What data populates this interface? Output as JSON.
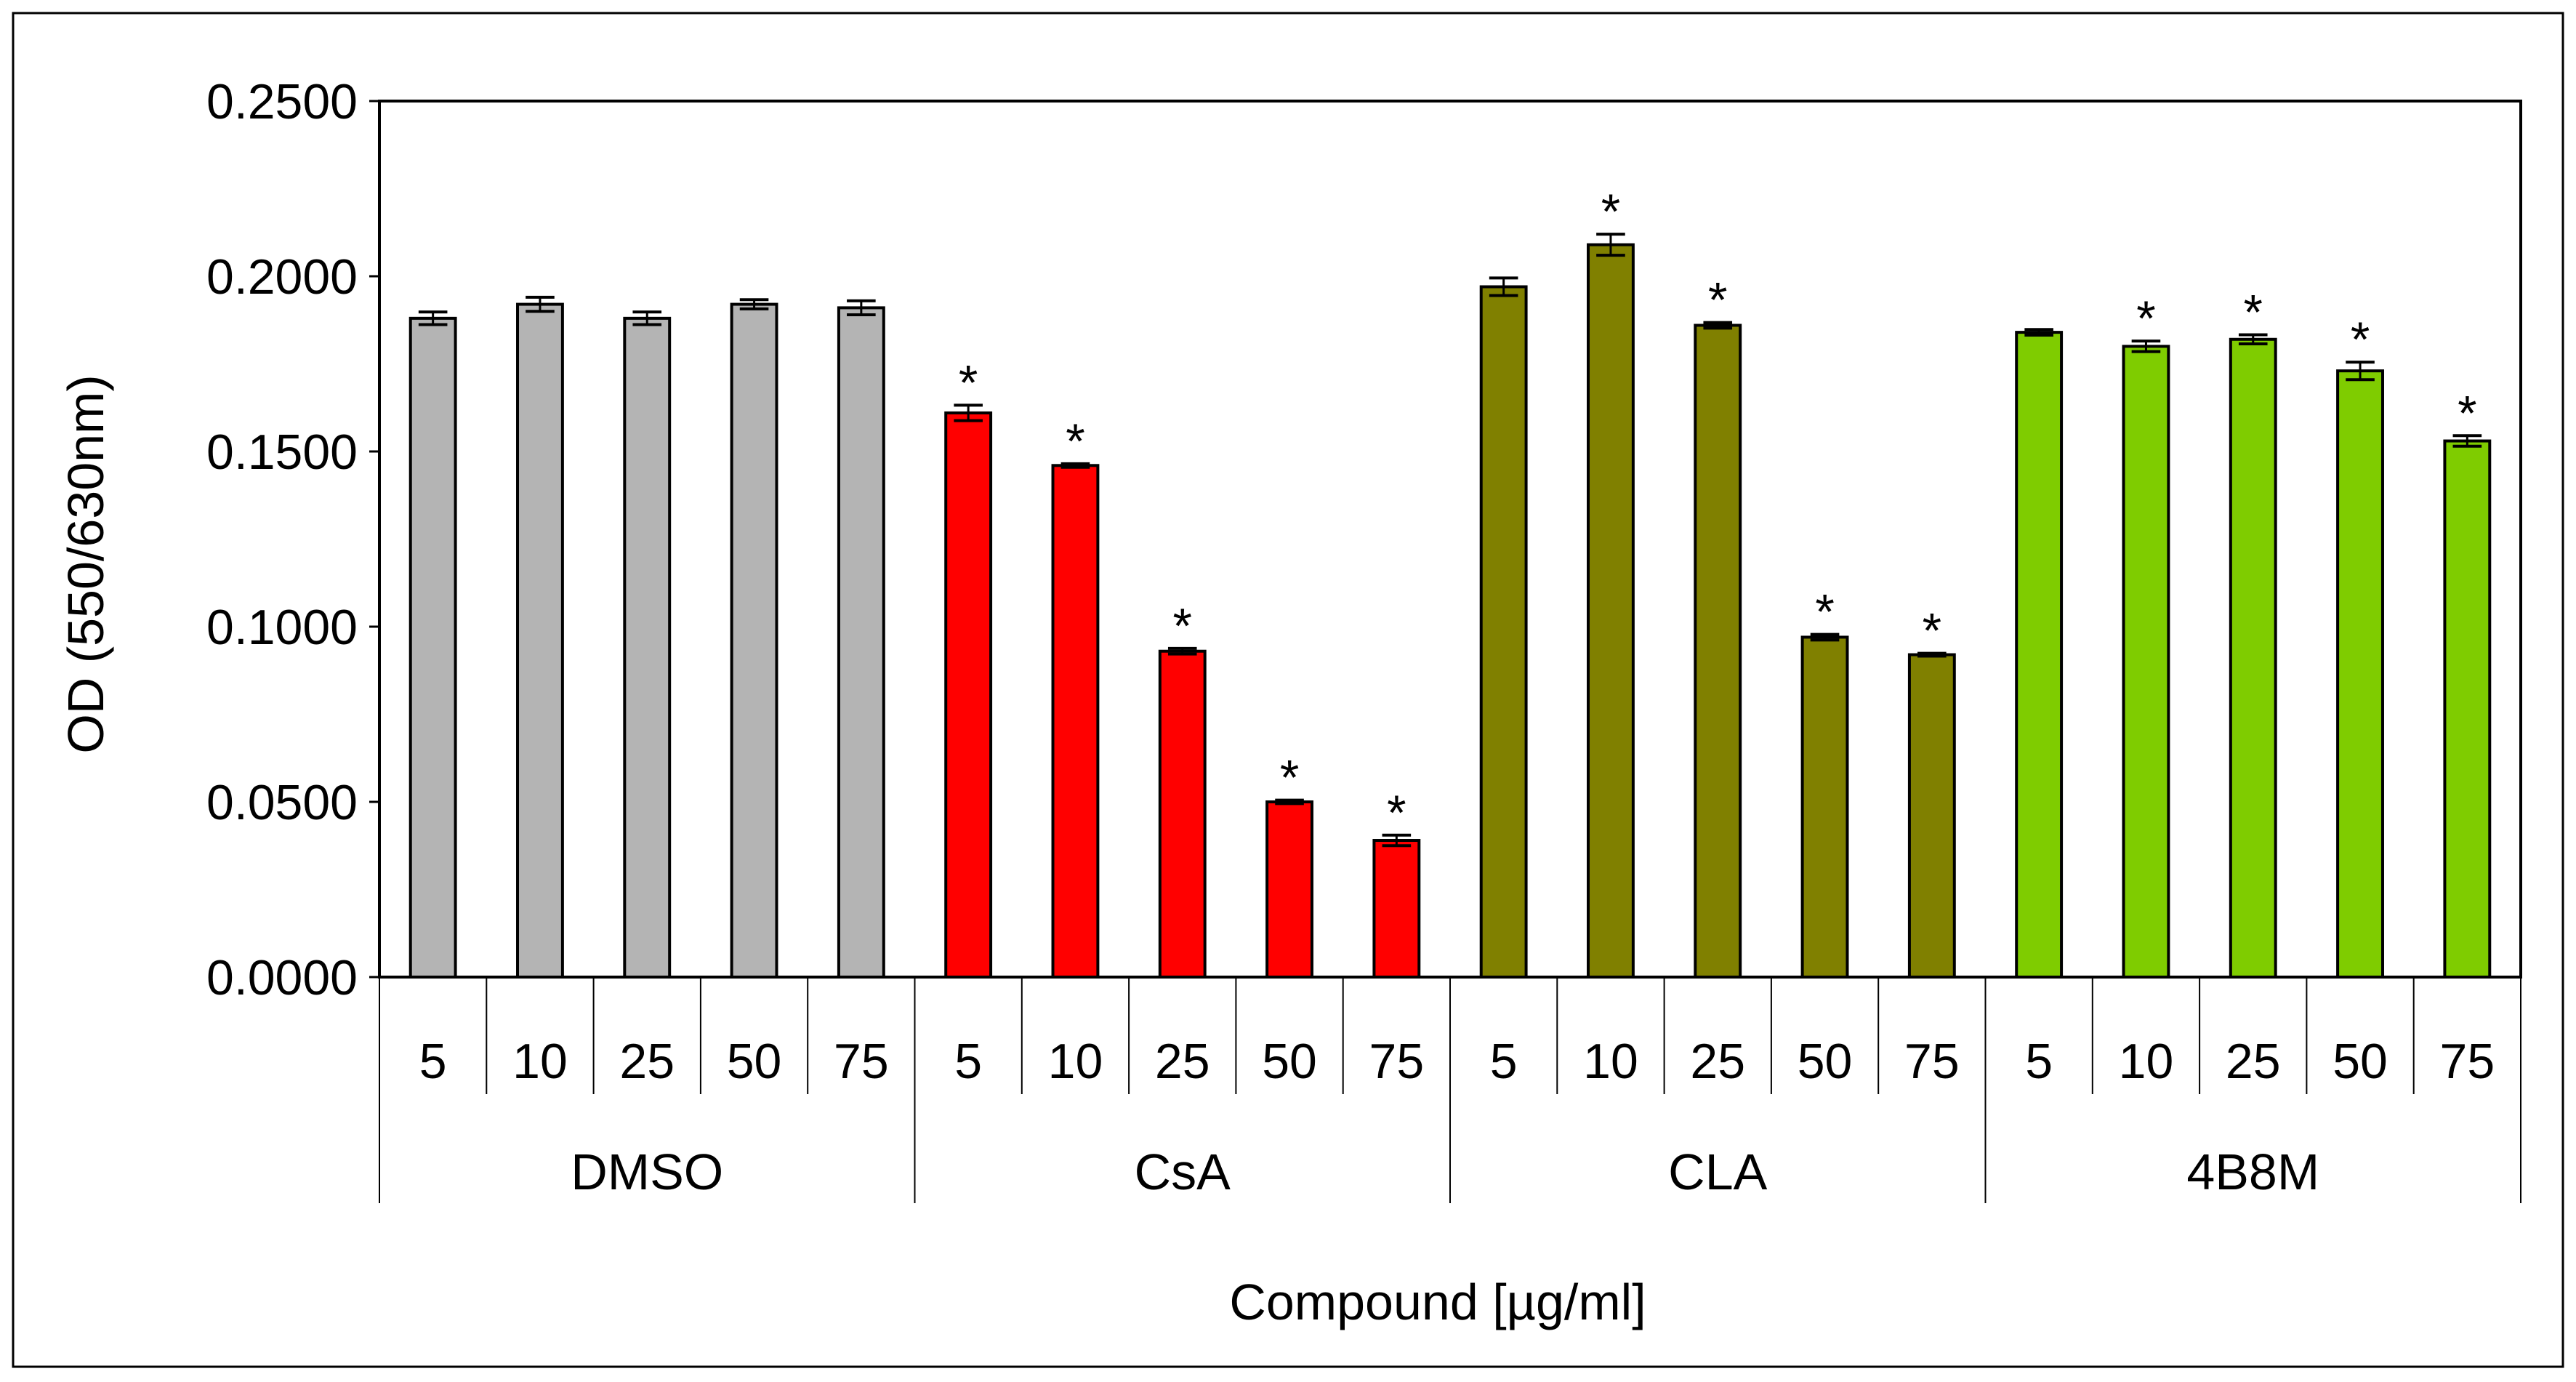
{
  "chart_data": {
    "type": "bar",
    "title": "",
    "xlabel": "Compound [µg/ml]",
    "ylabel": "OD (550/630nm)",
    "ylim": [
      0,
      0.25
    ],
    "yticks": [
      0.0,
      0.05,
      0.1,
      0.15,
      0.2,
      0.25
    ],
    "ytick_labels": [
      "0.0000",
      "0.0500",
      "0.1000",
      "0.1500",
      "0.2000",
      "0.2500"
    ],
    "grid": false,
    "significance_marker": "*",
    "groups": [
      {
        "name": "DMSO",
        "color": "#b4b4b4",
        "doses": [
          "5",
          "10",
          "25",
          "50",
          "75"
        ],
        "values": [
          0.188,
          0.192,
          0.188,
          0.192,
          0.191
        ],
        "errors": [
          0.0018,
          0.002,
          0.0018,
          0.0013,
          0.002
        ],
        "significant": [
          false,
          false,
          false,
          false,
          false
        ]
      },
      {
        "name": "CsA",
        "color": "#ff0000",
        "doses": [
          "5",
          "10",
          "25",
          "50",
          "75"
        ],
        "values": [
          0.161,
          0.146,
          0.093,
          0.05,
          0.039
        ],
        "errors": [
          0.0022,
          0.0005,
          0.0008,
          0.0005,
          0.0015
        ],
        "significant": [
          true,
          true,
          true,
          true,
          true
        ]
      },
      {
        "name": "CLA",
        "color": "#808000",
        "doses": [
          "5",
          "10",
          "25",
          "50",
          "75"
        ],
        "values": [
          0.197,
          0.209,
          0.186,
          0.097,
          0.092
        ],
        "errors": [
          0.0025,
          0.003,
          0.0008,
          0.0008,
          0.0004
        ],
        "significant": [
          false,
          true,
          true,
          true,
          true
        ]
      },
      {
        "name": "4B8M",
        "color": "#7fcc00",
        "doses": [
          "5",
          "10",
          "25",
          "50",
          "75"
        ],
        "values": [
          0.184,
          0.18,
          0.182,
          0.173,
          0.153
        ],
        "errors": [
          0.0008,
          0.0015,
          0.0013,
          0.0025,
          0.0015
        ],
        "significant": [
          false,
          true,
          true,
          true,
          true
        ]
      }
    ]
  }
}
